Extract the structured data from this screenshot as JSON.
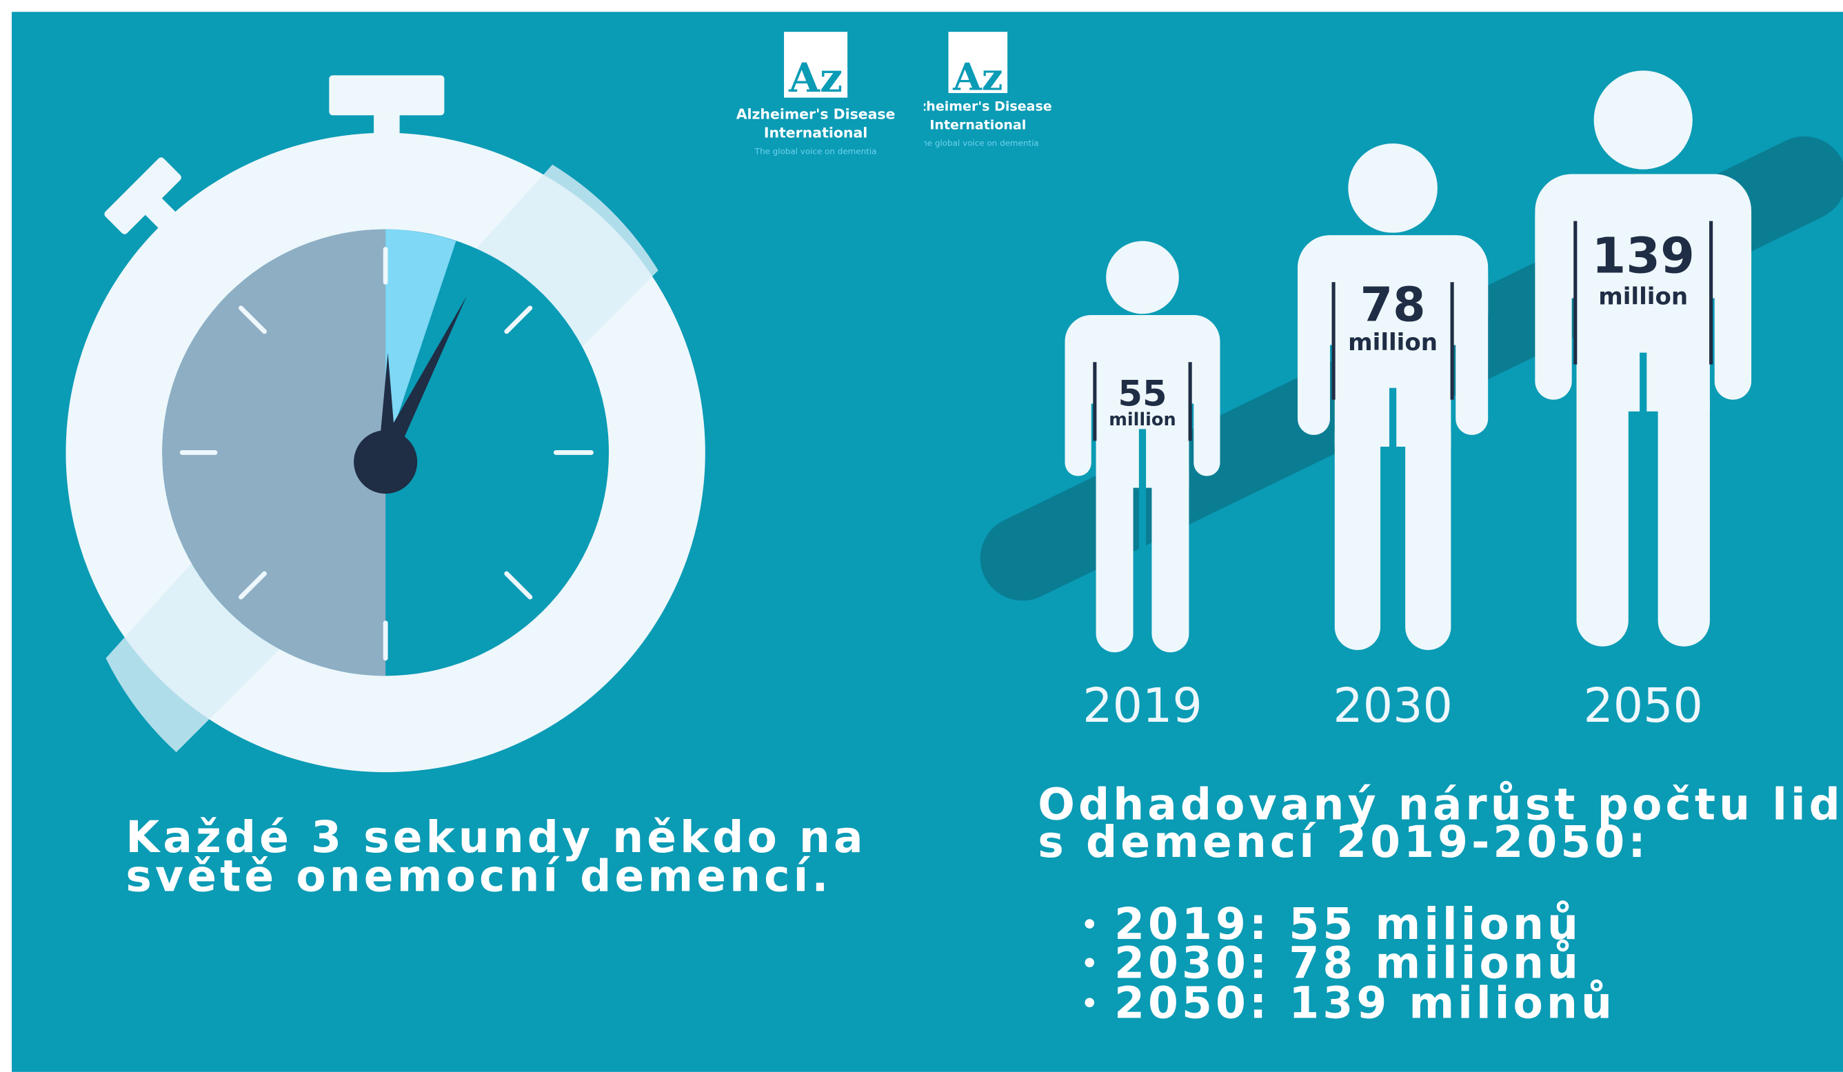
{
  "logo": {
    "mark": "Az",
    "name_line1": "Alzheimer's Disease",
    "name_line2": "International",
    "tagline": "The global voice on dementia"
  },
  "figures": [
    {
      "value": "55",
      "unit": "million",
      "year": "2019"
    },
    {
      "value": "78",
      "unit": "million",
      "year": "2030"
    },
    {
      "value": "139",
      "unit": "million",
      "year": "2050"
    }
  ],
  "left_caption": [
    "Každé 3 sekundy někdo na",
    "světě onemocní demencí."
  ],
  "right_heading": [
    "Odhadovaný nárůst počtu lidí",
    "s demencí 2019-2050:"
  ],
  "bullets": [
    "2019: 55 milionů",
    "2030: 78 milionů",
    "2050: 139 milionů"
  ]
}
